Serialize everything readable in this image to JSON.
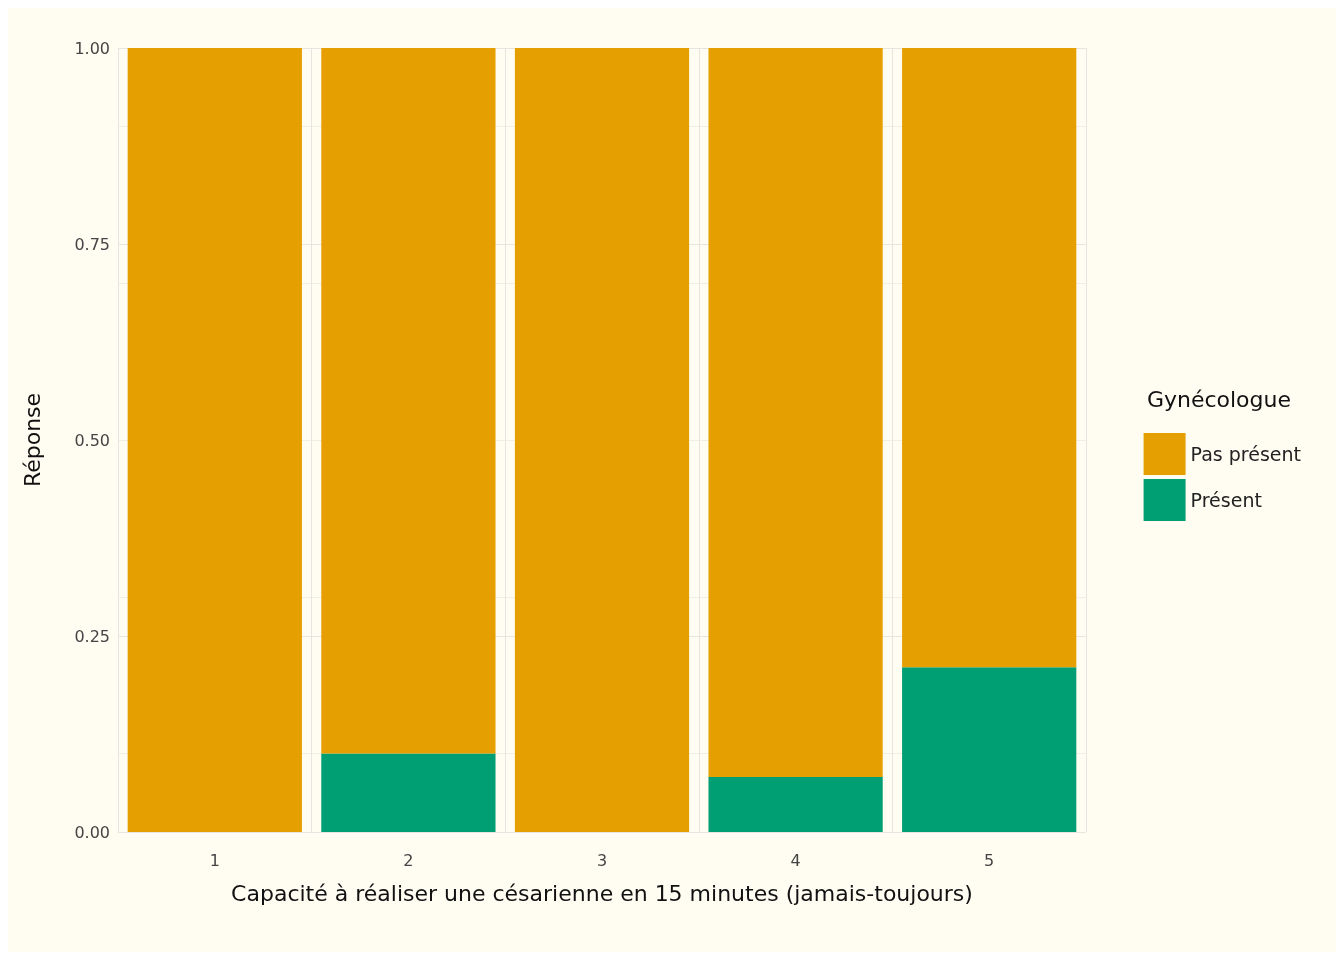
{
  "chart_data": {
    "type": "bar",
    "stacked": true,
    "xlabel": "Capacité à réaliser une césarienne en 15 minutes (jamais-toujours)",
    "ylabel": "Réponse",
    "legend_title": "Gynécologue",
    "categories": [
      "1",
      "2",
      "3",
      "4",
      "5"
    ],
    "series": [
      {
        "name": "Présent",
        "color": "#009e73",
        "values": [
          0,
          0.1,
          0,
          0.07,
          0.21
        ]
      },
      {
        "name": "Pas présent",
        "color": "#e69f00",
        "values": [
          1,
          0.9,
          1,
          0.93,
          0.79
        ]
      }
    ],
    "ylim": [
      0,
      1
    ],
    "yticks": [
      {
        "value": 0,
        "label": "0.00"
      },
      {
        "value": 0.25,
        "label": "0.25"
      },
      {
        "value": 0.5,
        "label": "0.50"
      },
      {
        "value": 0.75,
        "label": "0.75"
      },
      {
        "value": 1,
        "label": "1.00"
      }
    ],
    "grid": true,
    "legend": "right"
  }
}
